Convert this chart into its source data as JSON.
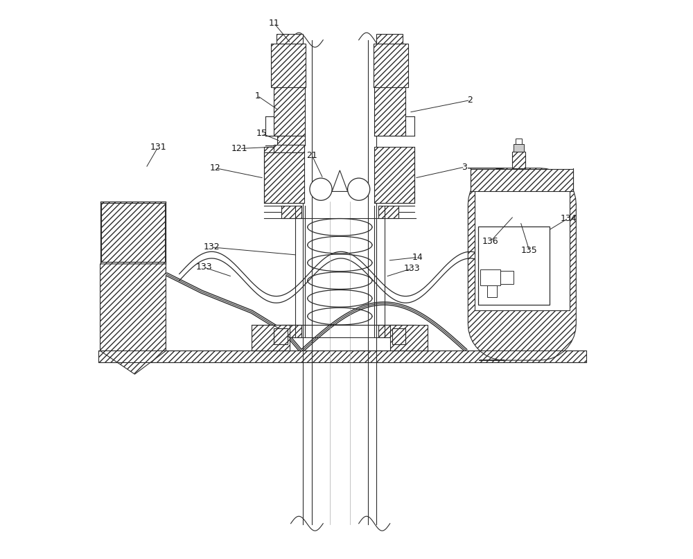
{
  "bg_color": "#ffffff",
  "line_color": "#2a2a2a",
  "fig_width": 10.0,
  "fig_height": 8.07
}
